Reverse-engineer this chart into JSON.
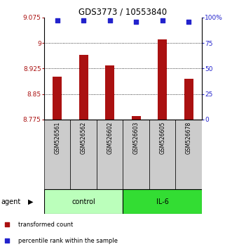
{
  "title": "GDS3773 / 10553840",
  "samples": [
    "GSM526561",
    "GSM526562",
    "GSM526602",
    "GSM526603",
    "GSM526605",
    "GSM526678"
  ],
  "bar_values": [
    8.9,
    8.965,
    8.935,
    8.785,
    9.01,
    8.895
  ],
  "percentile_values": [
    97,
    97,
    97,
    96,
    97,
    96
  ],
  "bar_color": "#aa1111",
  "percentile_color": "#2222cc",
  "ylim_left": [
    8.775,
    9.075
  ],
  "ylim_right": [
    0,
    100
  ],
  "yticks_left": [
    8.775,
    8.85,
    8.925,
    9.0,
    9.075
  ],
  "ytick_labels_left": [
    "8.775",
    "8.85",
    "8.925",
    "9",
    "9.075"
  ],
  "yticks_right": [
    0,
    25,
    50,
    75,
    100
  ],
  "ytick_labels_right": [
    "0",
    "25",
    "50",
    "75",
    "100%"
  ],
  "grid_lines": [
    8.85,
    8.925,
    9.0
  ],
  "group_data": [
    {
      "start": 0,
      "end": 2,
      "label": "control",
      "color": "#bbffbb"
    },
    {
      "start": 3,
      "end": 5,
      "label": "IL-6",
      "color": "#33dd33"
    }
  ],
  "agent_label": "agent",
  "legend_items": [
    {
      "label": "transformed count",
      "color": "#aa1111"
    },
    {
      "label": "percentile rank within the sample",
      "color": "#2222cc"
    }
  ]
}
